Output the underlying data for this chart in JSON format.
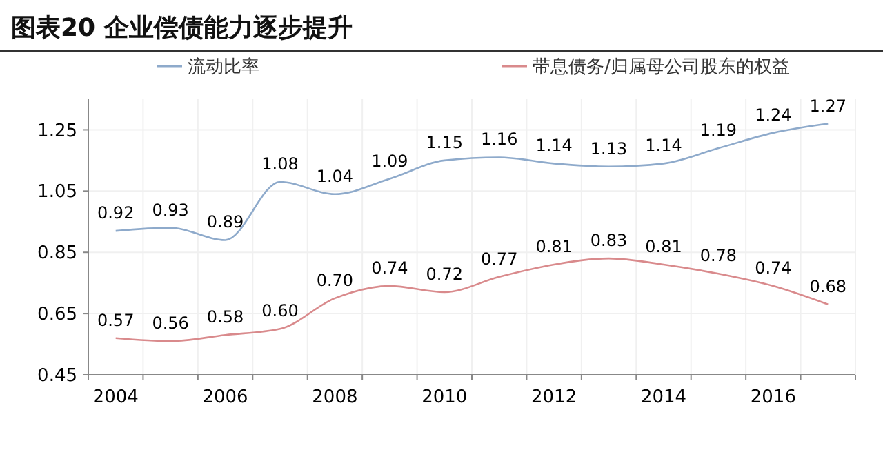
{
  "chart_data": {
    "type": "line",
    "title": "图表20   企业偿债能力逐步提升",
    "categories": [
      "2004",
      null,
      "2006",
      null,
      "2008",
      null,
      "2010",
      null,
      "2012",
      null,
      "2014",
      null,
      "2016",
      null
    ],
    "series": [
      {
        "name": "流动比率",
        "color": "#8eaacb",
        "values": [
          0.92,
          0.93,
          0.89,
          1.08,
          1.04,
          1.09,
          1.15,
          1.16,
          1.14,
          1.13,
          1.14,
          1.19,
          1.24,
          1.27
        ],
        "value_labels": [
          "0.92",
          "0.93",
          "0.89",
          "1.08",
          "1.04",
          "1.09",
          "1.15",
          "1.16",
          "1.14",
          "1.13",
          "1.14",
          "1.19",
          "1.24",
          "1.27"
        ]
      },
      {
        "name": "带息债务/归属母公司股东的权益",
        "color": "#d98a8c",
        "values": [
          0.57,
          0.56,
          0.58,
          0.6,
          0.7,
          0.74,
          0.72,
          0.77,
          0.81,
          0.83,
          0.81,
          0.78,
          0.74,
          0.68
        ],
        "value_labels": [
          "0.57",
          "0.56",
          "0.58",
          "0.60",
          "0.70",
          "0.74",
          "0.72",
          "0.77",
          "0.81",
          "0.83",
          "0.81",
          "0.78",
          "0.74",
          "0.68"
        ]
      }
    ],
    "ylim": [
      0.45,
      1.35
    ],
    "yticks": [
      {
        "value": 0.45,
        "label": "0.45"
      },
      {
        "value": 0.65,
        "label": "0.65"
      },
      {
        "value": 0.85,
        "label": "0.85"
      },
      {
        "value": 1.05,
        "label": "1.05"
      },
      {
        "value": 1.25,
        "label": "1.25"
      }
    ],
    "grid": true,
    "legend": "top",
    "marker": "none",
    "line_style": "solid"
  }
}
